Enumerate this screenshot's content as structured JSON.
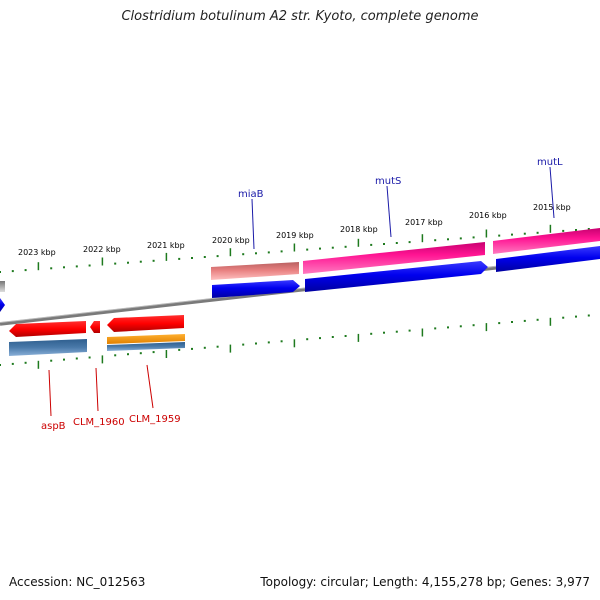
{
  "title": "Clostridium botulinum A2 str. Kyoto, complete genome",
  "footer": {
    "accession": "Accession: NC_012563",
    "summary": "Topology: circular; Length: 4,155,278 bp; Genes: 3,977"
  },
  "kbp_labels": [
    "2023 kbp",
    "2022 kbp",
    "2021 kbp",
    "2020 kbp",
    "2019 kbp",
    "2018 kbp",
    "2017 kbp",
    "2016 kbp",
    "2015 kbp"
  ],
  "gene_labels": {
    "miaB": "miaB",
    "mutS": "mutS",
    "mutL": "mutL",
    "aspB": "aspB",
    "clm1960": "CLM_1960",
    "clm1959": "CLM_1959"
  },
  "colors": {
    "label_blue": "#1a1aa8",
    "label_red": "#cc0000",
    "tick_green": "#1e7a1e",
    "cds_blue": "#0000ee",
    "gene_magenta": "#ff1493",
    "gene_pink": "#e88080",
    "gene_red": "#ff0000",
    "gene_orange": "#ff9900",
    "gene_steelblue": "#4a7aaa",
    "backbone_grey": "#888888"
  }
}
